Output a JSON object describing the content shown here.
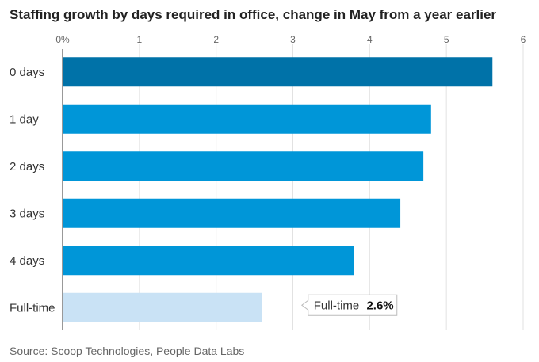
{
  "title": "Staffing growth by days required in office, change in May from a year earlier",
  "source": "Source: Scoop Technologies, People Data Labs",
  "chart_data": {
    "type": "bar",
    "orientation": "horizontal",
    "categories": [
      "0 days",
      "1 day",
      "2 days",
      "3 days",
      "4 days",
      "Full-time"
    ],
    "values": [
      5.6,
      4.8,
      4.7,
      4.4,
      3.8,
      2.6
    ],
    "bar_colors": [
      "#0072a8",
      "#0096d8",
      "#0096d8",
      "#0096d8",
      "#0096d8",
      "#c9e2f5"
    ],
    "xlim": [
      0,
      6
    ],
    "xticks": [
      0,
      1,
      2,
      3,
      4,
      5,
      6
    ],
    "xtick_labels": [
      "0%",
      "1",
      "2",
      "3",
      "4",
      "5",
      "6"
    ],
    "grid": true,
    "annotation": {
      "category": "Full-time",
      "label": "Full-time",
      "value_text": "2.6%"
    }
  }
}
